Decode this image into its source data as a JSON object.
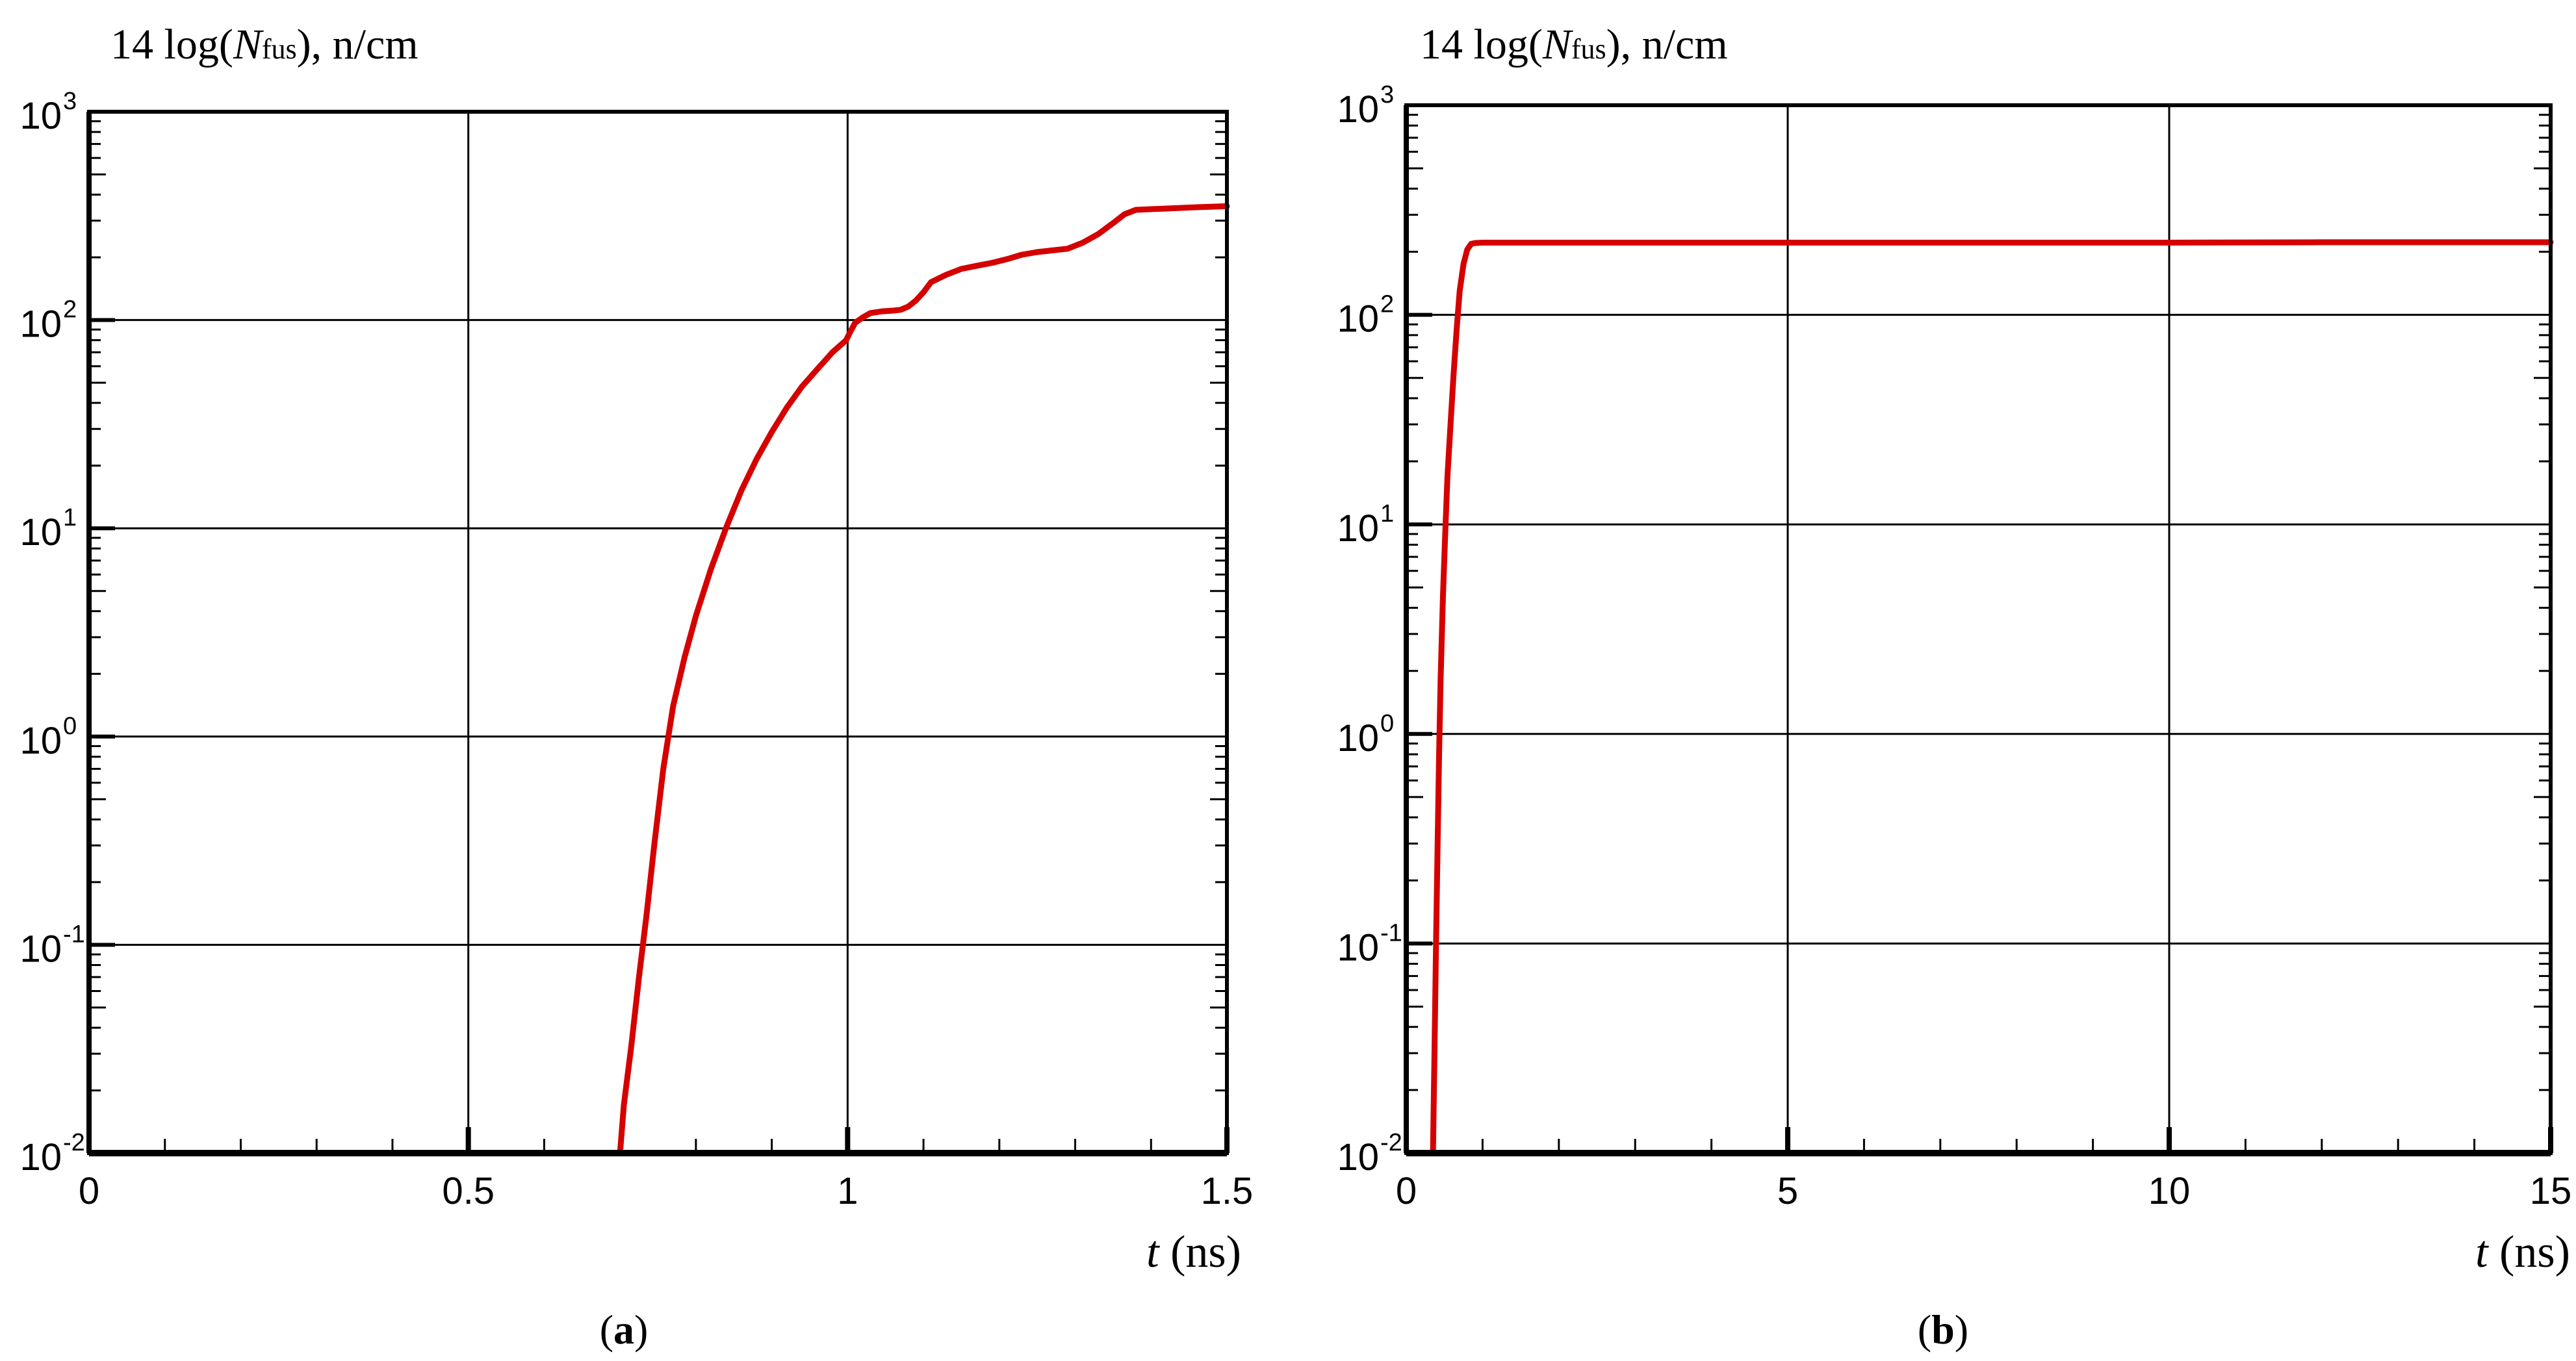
{
  "panels": [
    {
      "chart_data": {
        "type": "line",
        "ylabel_prefix": "14 log(",
        "ylabel_var": "N",
        "ylabel_sub": "fus",
        "ylabel_suffix": "), n/cm",
        "xlabel_var": "t",
        "xlabel_unit": " (ns)",
        "caption_open": "(",
        "caption_letter": "a",
        "caption_close": ")",
        "y_scale": "log",
        "xlim": [
          0,
          1.5
        ],
        "ylim": [
          0.01,
          1000
        ],
        "x_major_ticks": [
          0,
          0.5,
          1,
          1.5
        ],
        "x_tick_labels": [
          "0",
          "0.5",
          "1",
          "1.5"
        ],
        "x_minor_step": 0.1,
        "y_major_ticks": [
          0.01,
          0.1,
          1,
          10,
          100,
          1000
        ],
        "y_tick_bases": [
          "10",
          "10",
          "10",
          "10",
          "10",
          "10"
        ],
        "y_tick_exps": [
          "-2",
          "-1",
          "0",
          "1",
          "2",
          "3"
        ],
        "grid": true,
        "line_color": "#d50000",
        "series": [
          {
            "x": [
              0.7,
              0.705,
              0.715,
              0.725,
              0.735,
              0.745,
              0.757,
              0.77,
              0.785,
              0.8,
              0.82,
              0.84,
              0.86,
              0.88,
              0.9,
              0.92,
              0.94,
              0.96,
              0.98,
              0.998,
              1.003,
              1.01,
              1.02,
              1.03,
              1.045,
              1.06,
              1.07,
              1.08,
              1.09,
              1.1,
              1.11,
              1.13,
              1.15,
              1.17,
              1.19,
              1.21,
              1.23,
              1.25,
              1.27,
              1.29,
              1.31,
              1.33,
              1.35,
              1.365,
              1.38,
              1.42,
              1.46,
              1.5
            ],
            "y": [
              0.01,
              0.017,
              0.033,
              0.07,
              0.14,
              0.3,
              0.7,
              1.4,
              2.4,
              3.8,
              6.4,
              10.1,
              15.2,
              21.5,
              29,
              38,
              48,
              58,
              70,
              80,
              87,
              97,
              103,
              108,
              110,
              111,
              112,
              116,
              124,
              136,
              152,
              165,
              176,
              182,
              188,
              196,
              206,
              212,
              216,
              220,
              235,
              258,
              292,
              322,
              338,
              343,
              348,
              352
            ]
          }
        ]
      }
    },
    {
      "chart_data": {
        "type": "line",
        "ylabel_prefix": "14 log(",
        "ylabel_var": "N",
        "ylabel_sub": "fus",
        "ylabel_suffix": "), n/cm",
        "xlabel_var": "t",
        "xlabel_unit": " (ns)",
        "caption_open": "(",
        "caption_letter": "b",
        "caption_close": ")",
        "y_scale": "log",
        "xlim": [
          0,
          15
        ],
        "ylim": [
          0.01,
          1000
        ],
        "x_major_ticks": [
          0,
          5,
          10,
          15
        ],
        "x_tick_labels": [
          "0",
          "5",
          "10",
          "15"
        ],
        "x_minor_step": 1,
        "y_major_ticks": [
          0.01,
          0.1,
          1,
          10,
          100,
          1000
        ],
        "y_tick_bases": [
          "10",
          "10",
          "10",
          "10",
          "10",
          "10"
        ],
        "y_tick_exps": [
          "-2",
          "-1",
          "0",
          "1",
          "2",
          "3"
        ],
        "grid": true,
        "line_color": "#d50000",
        "series": [
          {
            "x": [
              0.35,
              0.37,
              0.39,
              0.41,
              0.43,
              0.45,
              0.48,
              0.51,
              0.54,
              0.58,
              0.62,
              0.66,
              0.7,
              0.75,
              0.8,
              0.85,
              0.9,
              1.0,
              2,
              4,
              6,
              8,
              10,
              12,
              14,
              15
            ],
            "y": [
              0.01,
              0.03,
              0.1,
              0.28,
              0.8,
              1.8,
              4.5,
              9,
              17,
              30,
              52,
              85,
              130,
              175,
              205,
              218,
              220,
              221,
              221,
              221,
              221,
              221,
              221,
              222,
              222,
              222
            ]
          }
        ]
      }
    }
  ]
}
